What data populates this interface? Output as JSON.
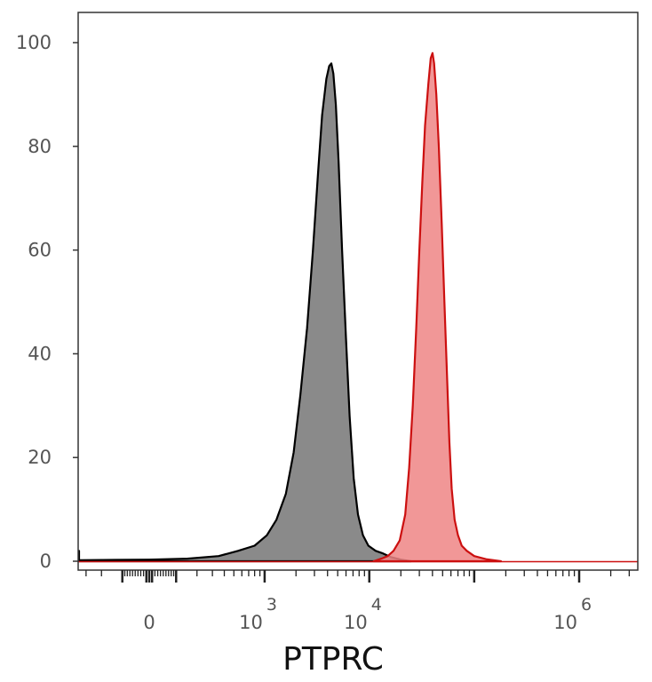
{
  "chart_data": {
    "type": "area",
    "xlabel": "PTPRC",
    "ylabel": "",
    "x_scale": "biexponential",
    "ylim": [
      0,
      100
    ],
    "y_ticks": [
      0,
      20,
      40,
      60,
      80,
      100
    ],
    "x_ticks": [
      {
        "value": 0,
        "base": "0",
        "exp": ""
      },
      {
        "value": 1000,
        "base": "10",
        "exp": "3"
      },
      {
        "value": 10000,
        "base": "10",
        "exp": "4"
      },
      {
        "value": 1000000,
        "base": "10",
        "exp": "6"
      }
    ],
    "grid": false,
    "series": [
      {
        "color": "#000000",
        "fill": "#8a8a8a",
        "points": [
          [
            -800,
            2
          ],
          [
            -650,
            0.5
          ],
          [
            -400,
            0.2
          ],
          [
            0,
            0.3
          ],
          [
            150,
            0.5
          ],
          [
            350,
            1
          ],
          [
            550,
            2
          ],
          [
            800,
            3
          ],
          [
            1050,
            5
          ],
          [
            1300,
            8
          ],
          [
            1600,
            13
          ],
          [
            1900,
            21
          ],
          [
            2200,
            32
          ],
          [
            2550,
            45
          ],
          [
            2900,
            60
          ],
          [
            3250,
            75
          ],
          [
            3550,
            86
          ],
          [
            3900,
            93
          ],
          [
            4150,
            95.5
          ],
          [
            4350,
            96
          ],
          [
            4550,
            94
          ],
          [
            4800,
            88
          ],
          [
            5100,
            77
          ],
          [
            5500,
            60
          ],
          [
            6000,
            43
          ],
          [
            6500,
            28
          ],
          [
            7100,
            16
          ],
          [
            7800,
            9
          ],
          [
            8700,
            5
          ],
          [
            9800,
            3
          ],
          [
            11500,
            2
          ],
          [
            13500,
            1.5
          ],
          [
            16000,
            0.8
          ],
          [
            20000,
            0.3
          ],
          [
            25000,
            0
          ]
        ]
      },
      {
        "color": "#cc1010",
        "fill": "#ee8585",
        "points": [
          [
            11000,
            0
          ],
          [
            13000,
            0.5
          ],
          [
            15000,
            1
          ],
          [
            17000,
            2
          ],
          [
            19500,
            4
          ],
          [
            22000,
            9
          ],
          [
            24000,
            18
          ],
          [
            26000,
            30
          ],
          [
            28000,
            45
          ],
          [
            30000,
            60
          ],
          [
            32000,
            73
          ],
          [
            34000,
            84
          ],
          [
            36500,
            92
          ],
          [
            38500,
            97
          ],
          [
            40000,
            98
          ],
          [
            41500,
            96
          ],
          [
            43500,
            90
          ],
          [
            46000,
            80
          ],
          [
            49000,
            65
          ],
          [
            52000,
            50
          ],
          [
            55000,
            36
          ],
          [
            58000,
            23
          ],
          [
            61000,
            14
          ],
          [
            65000,
            8
          ],
          [
            70000,
            5
          ],
          [
            76000,
            3
          ],
          [
            85000,
            2
          ],
          [
            100000,
            1
          ],
          [
            130000,
            0.4
          ],
          [
            180000,
            0
          ]
        ]
      }
    ]
  }
}
